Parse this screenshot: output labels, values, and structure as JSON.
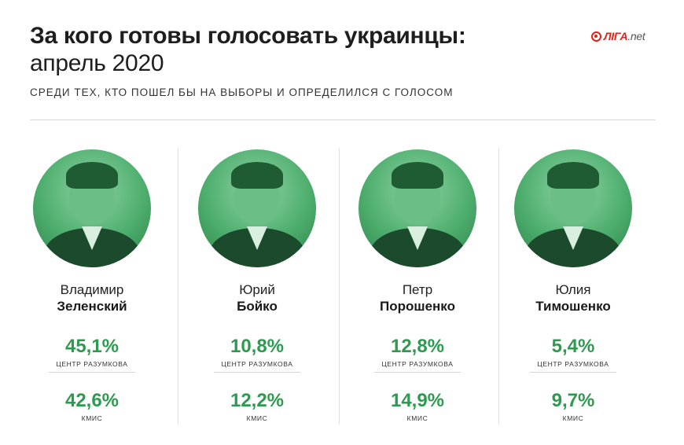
{
  "header": {
    "title_bold": "За кого готовы голосовать украинцы:",
    "title_regular": "апрель 2020",
    "subtitle": "СРЕДИ ТЕХ, КТО ПОШЕЛ БЫ НА ВЫБОРЫ И ОПРЕДЕЛИЛСЯ С ГОЛОСОМ"
  },
  "logo": {
    "main": "ЛІГА",
    "suffix": ".net"
  },
  "colors": {
    "accent_green": "#2e9a50",
    "logo_red": "#e2231a",
    "photo_tint": "#4cad6c"
  },
  "candidates": [
    {
      "first_name": "Владимир",
      "last_name": "Зеленский",
      "pct_razumkov": "45,1%",
      "src_razumkov": "ЦЕНТР РАЗУМКОВА",
      "pct_kmis": "42,6%",
      "src_kmis": "КМИС"
    },
    {
      "first_name": "Юрий",
      "last_name": "Бойко",
      "pct_razumkov": "10,8%",
      "src_razumkov": "ЦЕНТР РАЗУМКОВА",
      "pct_kmis": "12,2%",
      "src_kmis": "КМИС"
    },
    {
      "first_name": "Петр",
      "last_name": "Порошенко",
      "pct_razumkov": "12,8%",
      "src_razumkov": "ЦЕНТР РАЗУМКОВА",
      "pct_kmis": "14,9%",
      "src_kmis": "КМИС"
    },
    {
      "first_name": "Юлия",
      "last_name": "Тимошенко",
      "pct_razumkov": "5,4%",
      "src_razumkov": "ЦЕНТР РАЗУМКОВА",
      "pct_kmis": "9,7%",
      "src_kmis": "КМИС"
    }
  ]
}
